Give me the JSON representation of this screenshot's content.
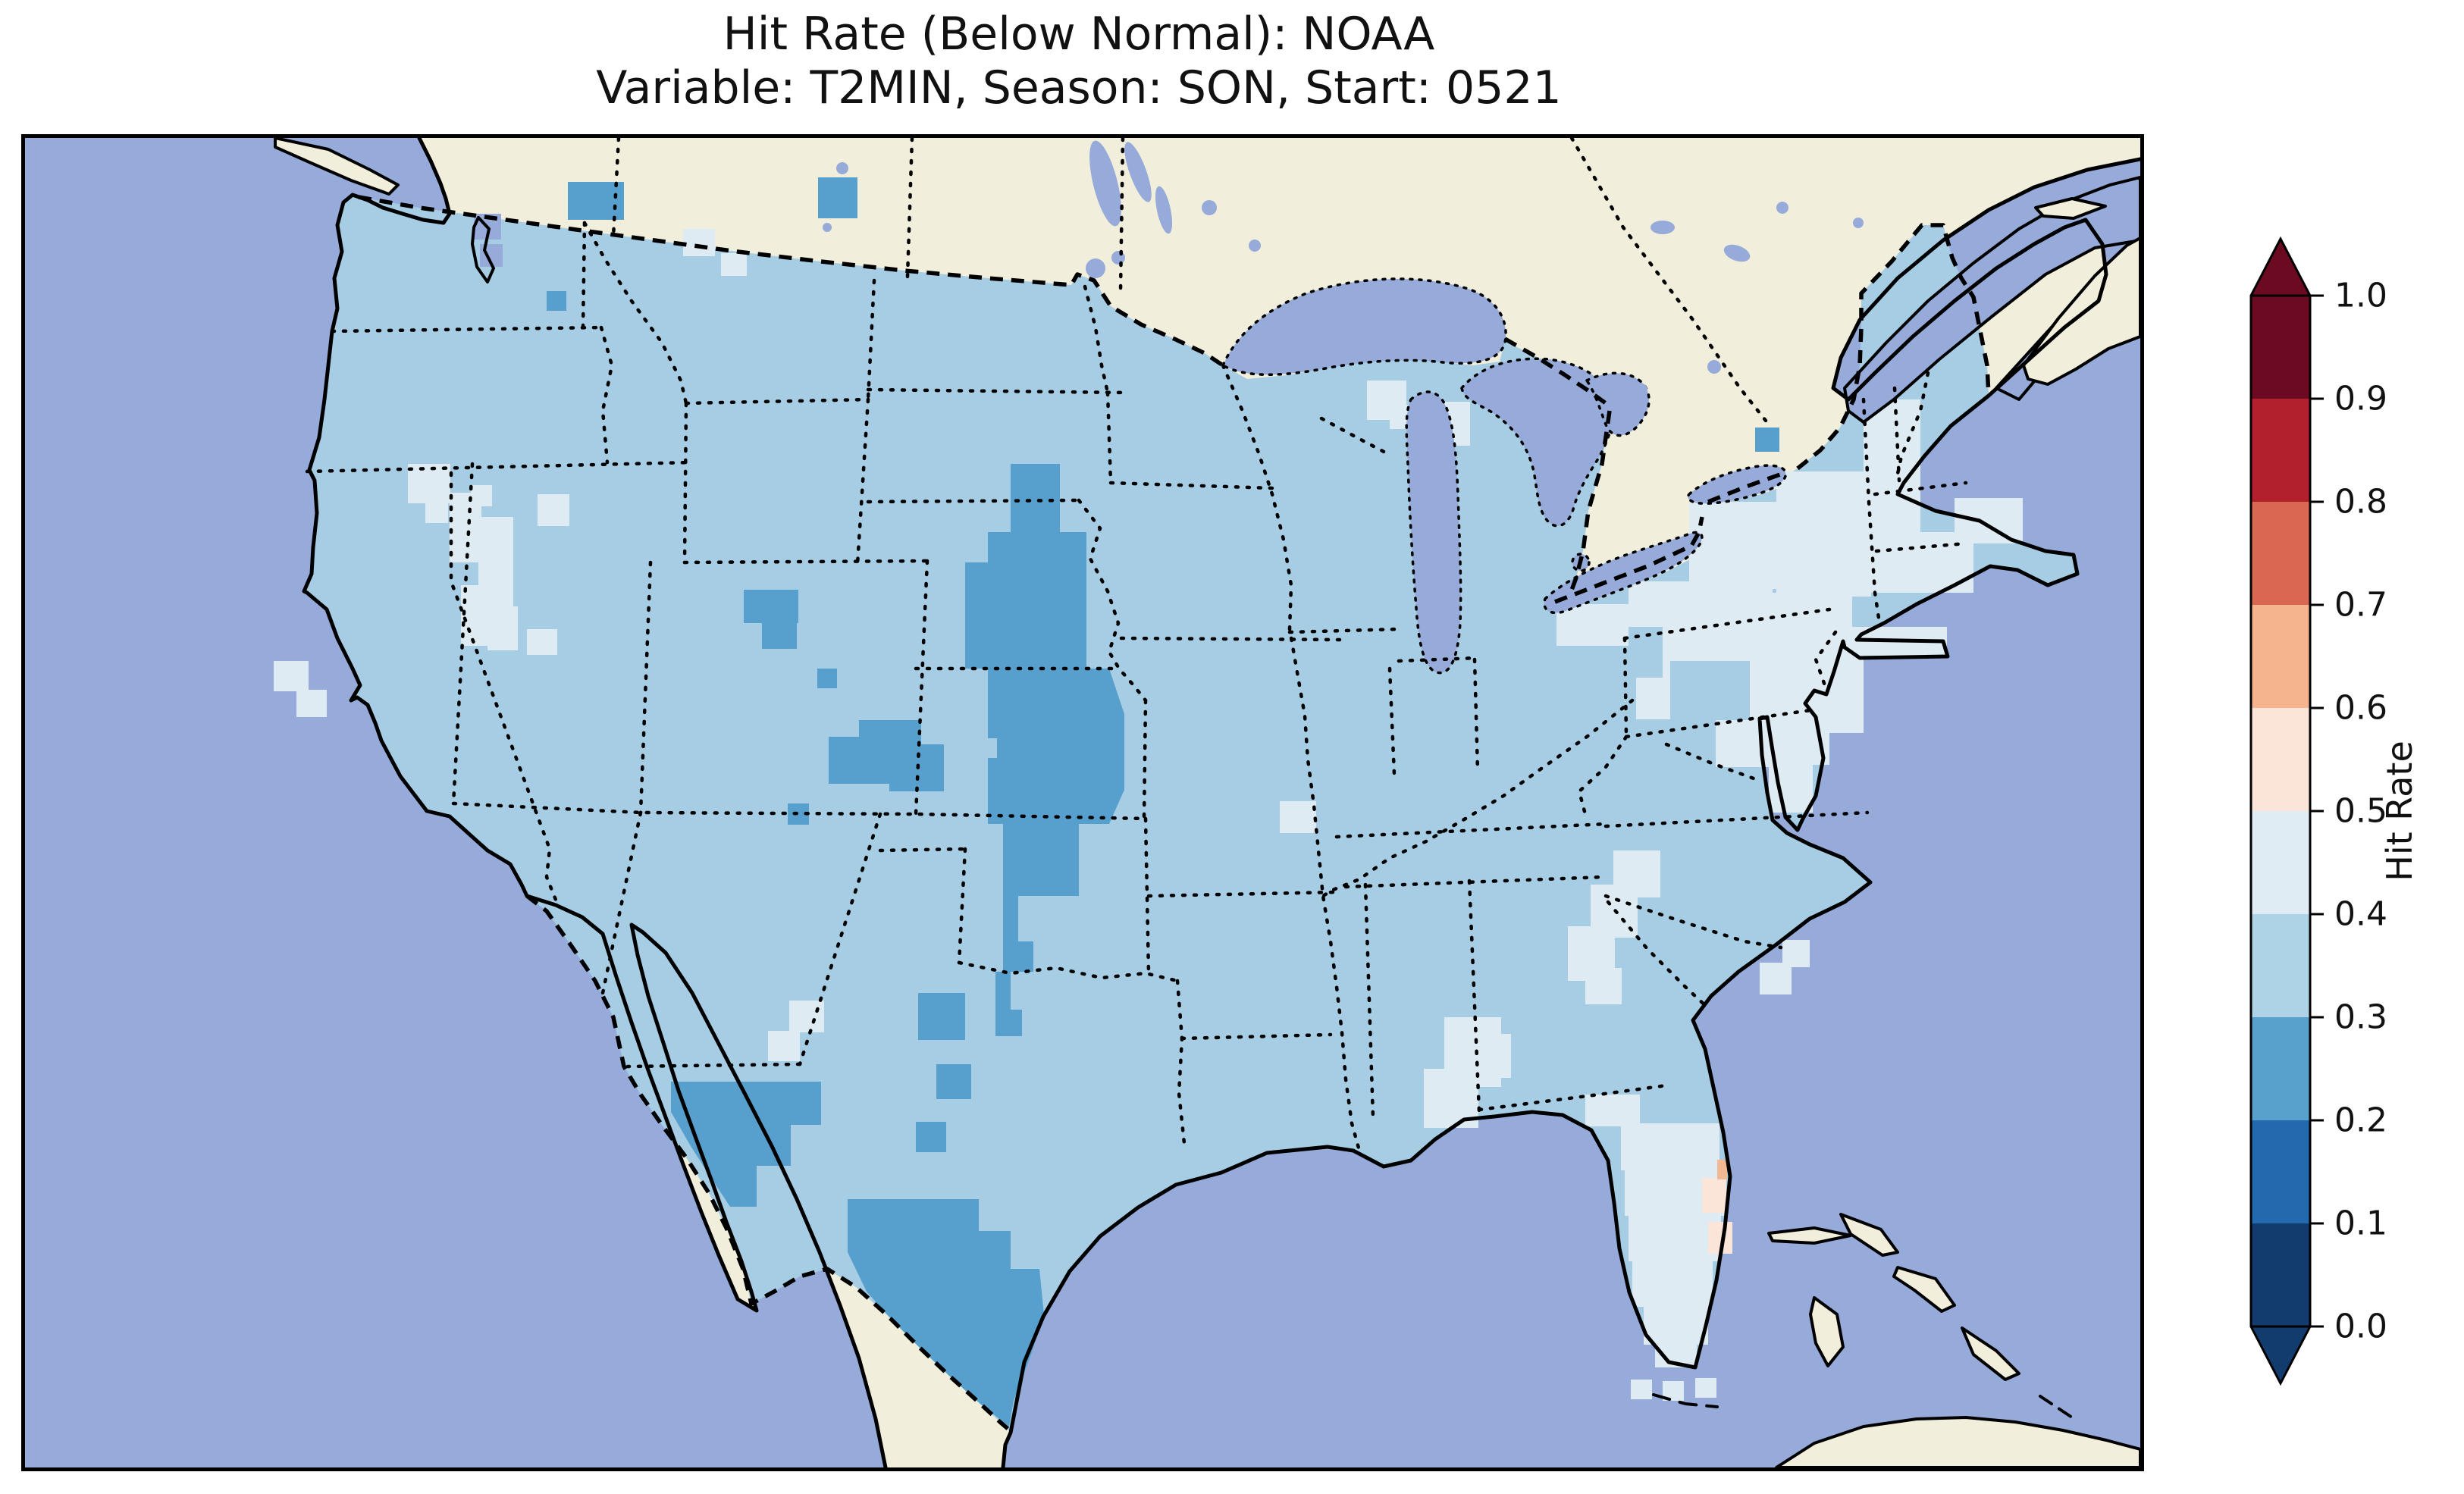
{
  "title": {
    "line1": "Hit Rate (Below Normal): NOAA",
    "line2": "Variable: T2MIN, Season: SON, Start: 0521"
  },
  "colorbar": {
    "label": "Hit Rate",
    "tick_labels": [
      "1.0",
      "0.9",
      "0.8",
      "0.7",
      "0.6",
      "0.5",
      "0.4",
      "0.3",
      "0.2",
      "0.1",
      "0.0"
    ],
    "bin_colors_top_to_bottom": [
      "#6b0a20",
      "#b2202e",
      "#d96752",
      "#f5b48d",
      "#fae5d8",
      "#dfecf4",
      "#aed3e7",
      "#58a1cd",
      "#2369ad",
      "#123c6d"
    ],
    "extend": "both",
    "outline_color": "#000000"
  },
  "colors": {
    "ocean": "#96abd9",
    "land": "#f1eedb",
    "cell-light": "#a6cde3",
    "cell-pale": "#dfebf3",
    "cell-mid": "#57a0cd",
    "cell-peach": "#fae5d8",
    "cell-orange": "#f2b793",
    "line": "#000000",
    "text": "#111111"
  },
  "chart_data": {
    "type": "heatmap",
    "subtype": "geographic-gridded-map (CONUS)",
    "title": "Hit Rate (Below Normal): NOAA",
    "subtitle": "Variable: T2MIN, Season: SON, Start: 0521",
    "colorbar": {
      "label": "Hit Rate",
      "range": [
        0.0,
        1.0
      ],
      "tick_step": 0.1,
      "bins": [
        {
          "range": "0.0-0.1",
          "color": "#123c6d"
        },
        {
          "range": "0.1-0.2",
          "color": "#2369ad"
        },
        {
          "range": "0.2-0.3",
          "color": "#58a1cd"
        },
        {
          "range": "0.3-0.4",
          "color": "#aed3e7"
        },
        {
          "range": "0.4-0.5",
          "color": "#dfecf4"
        },
        {
          "range": "0.5-0.6",
          "color": "#fae5d8"
        },
        {
          "range": "0.6-0.7",
          "color": "#f5b48d"
        },
        {
          "range": "0.7-0.8",
          "color": "#d96752"
        },
        {
          "range": "0.8-0.9",
          "color": "#b2202e"
        },
        {
          "range": "0.9-1.0",
          "color": "#6b0a20"
        }
      ],
      "extend": "both",
      "colormap": "RdBu_r (10 discrete bins)"
    },
    "map_values": [
      {
        "region": "Most of contiguous United States",
        "hit_rate_bin": "0.3-0.4"
      },
      {
        "region": "Eastern Nebraska / eastern Kansas corridor",
        "hit_rate_bin": "0.2-0.3"
      },
      {
        "region": "Western Kansas patch",
        "hit_rate_bin": "0.2-0.3"
      },
      {
        "region": "North-central Oklahoma / north Texas cells",
        "hit_rate_bin": "0.2-0.3"
      },
      {
        "region": "South Texas (Rio Grande Valley)",
        "hit_rate_bin": "0.2-0.3"
      },
      {
        "region": "Big Bend, Texas",
        "hit_rate_bin": "0.2-0.3"
      },
      {
        "region": "Southern Wyoming / NW Colorado cells",
        "hit_rate_bin": "0.2-0.3"
      },
      {
        "region": "Cells along Washington / Montana Canadian border",
        "hit_rate_bin": "0.2-0.3"
      },
      {
        "region": "Cell near St. Lawrence (northern New York)",
        "hit_rate_bin": "0.2-0.3"
      },
      {
        "region": "Northeast: New York, Pennsylvania, New Jersey, Maryland, southern New England",
        "hit_rate_bin": "0.4-0.5"
      },
      {
        "region": "Florida peninsula",
        "hit_rate_bin": "0.4-0.5"
      },
      {
        "region": "Florida east coast cells (Cape Canaveral area)",
        "hit_rate_bin": "0.5-0.6"
      },
      {
        "region": "Florida east coast tiny sliver",
        "hit_rate_bin": "0.6-0.7"
      },
      {
        "region": "Western North Carolina / east Tennessee mountains",
        "hit_rate_bin": "0.4-0.5"
      },
      {
        "region": "West Georgia / east Alabama patch",
        "hit_rate_bin": "0.4-0.5"
      },
      {
        "region": "Scattered cells: central Oregon, NV-UT-ID Great Basin, New Mexico, Missouri, Wisconsin, coastal South Carolina, Florida Keys",
        "hit_rate_bin": "0.4-0.5"
      }
    ],
    "basemap": {
      "land_color": "#f1eedb",
      "ocean_color": "#96abd9",
      "coastlines": "solid black",
      "state_borders": "dotted black",
      "country_borders": "dashed black"
    }
  }
}
